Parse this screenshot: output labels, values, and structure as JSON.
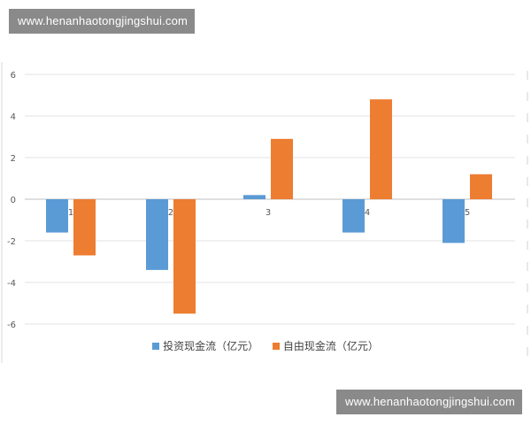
{
  "watermark": {
    "top_text": "www.henanhaotongjingshui.com",
    "bottom_text": "www.henanhaotongjingshui.com"
  },
  "chart_data": {
    "type": "bar",
    "title": "",
    "xlabel": "",
    "ylabel": "",
    "categories": [
      "1",
      "2",
      "3",
      "4",
      "5"
    ],
    "ylim": [
      -6,
      6
    ],
    "yticks": [
      6,
      4,
      2,
      0,
      -2,
      -4,
      -6
    ],
    "ytick_labels": [
      "6",
      "4",
      "2",
      "0",
      "-2",
      "-4",
      "-6"
    ],
    "grid": true,
    "legend": "bottom",
    "series": [
      {
        "name": "投资现金流（亿元）",
        "color": "#5b9bd5",
        "values": [
          -1.6,
          -3.4,
          0.2,
          -1.6,
          -2.1
        ]
      },
      {
        "name": "自由现金流（亿元）",
        "color": "#ed7d31",
        "values": [
          -2.7,
          -5.5,
          2.9,
          4.8,
          1.2
        ]
      }
    ]
  }
}
